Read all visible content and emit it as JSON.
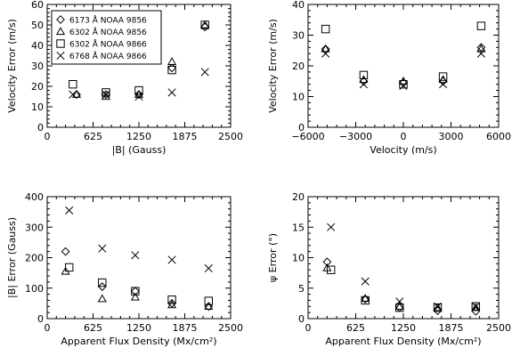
{
  "chart_data": [
    {
      "type": "scatter",
      "xlabel": "|B| (Gauss)",
      "ylabel": "Velocity Error (m/s)",
      "xlim": [
        0,
        2500
      ],
      "ylim": [
        0,
        60
      ],
      "xticks": [
        0,
        625,
        1250,
        1875,
        2500
      ],
      "yticks": [
        0,
        10,
        20,
        30,
        40,
        50,
        60
      ],
      "legend": {
        "placement": "top-left",
        "entries": [
          "6173 Å NOAA 9856",
          "6302 Å NOAA 9856",
          "6302 Å NOAA 9866",
          "6768 Å NOAA 9866"
        ]
      },
      "series": [
        {
          "name": "6173 Å NOAA 9856",
          "marker": "diamond",
          "x": [
            400,
            800,
            1250,
            1700,
            2150
          ],
          "y": [
            16,
            16,
            16,
            29,
            49
          ]
        },
        {
          "name": "6302 Å NOAA 9856",
          "marker": "triangle",
          "x": [
            400,
            800,
            1250,
            1700,
            2150
          ],
          "y": [
            16,
            15,
            16,
            32,
            50
          ]
        },
        {
          "name": "6302 Å NOAA 9866",
          "marker": "square",
          "x": [
            350,
            800,
            1250,
            1700,
            2150
          ],
          "y": [
            21,
            17,
            18,
            28,
            50
          ]
        },
        {
          "name": "6768 Å NOAA 9866",
          "marker": "x",
          "x": [
            350,
            800,
            1250,
            1700,
            2150
          ],
          "y": [
            16,
            16,
            15,
            17,
            27
          ]
        }
      ]
    },
    {
      "type": "scatter",
      "xlabel": "Velocity (m/s)",
      "ylabel": "Velocity Error (m/s)",
      "xlim": [
        -6000,
        6000
      ],
      "ylim": [
        0,
        40
      ],
      "xticks": [
        -6000,
        -3000,
        0,
        3000,
        6000
      ],
      "yticks": [
        0,
        10,
        20,
        30,
        40
      ],
      "series": [
        {
          "name": "6173 Å NOAA 9856",
          "marker": "diamond",
          "x": [
            -4900,
            -2500,
            0,
            2500,
            4900
          ],
          "y": [
            25.5,
            15,
            14.5,
            15,
            26
          ]
        },
        {
          "name": "6302 Å NOAA 9856",
          "marker": "triangle",
          "x": [
            -4900,
            -2500,
            0,
            2500,
            4900
          ],
          "y": [
            25.5,
            15.5,
            15,
            15.5,
            25.5
          ]
        },
        {
          "name": "6302 Å NOAA 9866",
          "marker": "square",
          "x": [
            -4900,
            -2500,
            0,
            2500,
            4900
          ],
          "y": [
            32,
            17,
            14,
            16.5,
            33
          ]
        },
        {
          "name": "6768 Å NOAA 9866",
          "marker": "x",
          "x": [
            -4900,
            -2500,
            0,
            2500,
            4900
          ],
          "y": [
            24,
            14,
            13.5,
            14,
            24
          ]
        }
      ]
    },
    {
      "type": "scatter",
      "xlabel": "Apparent Flux Density (Mx/cm²)",
      "ylabel": "|B| Error (Gauss)",
      "xlim": [
        0,
        2500
      ],
      "ylim": [
        0,
        400
      ],
      "xticks": [
        0,
        625,
        1250,
        1875,
        2500
      ],
      "yticks": [
        0,
        100,
        200,
        300,
        400
      ],
      "series": [
        {
          "name": "6173 Å NOAA 9856",
          "marker": "diamond",
          "x": [
            250,
            750,
            1200,
            1700,
            2200
          ],
          "y": [
            220,
            105,
            90,
            50,
            40
          ]
        },
        {
          "name": "6302 Å NOAA 9856",
          "marker": "triangle",
          "x": [
            250,
            750,
            1200,
            1700,
            2200
          ],
          "y": [
            155,
            65,
            70,
            45,
            40
          ]
        },
        {
          "name": "6302 Å NOAA 9866",
          "marker": "square",
          "x": [
            300,
            750,
            1200,
            1700,
            2200
          ],
          "y": [
            168,
            118,
            90,
            62,
            58
          ]
        },
        {
          "name": "6768 Å NOAA 9866",
          "marker": "x",
          "x": [
            300,
            750,
            1200,
            1700,
            2200
          ],
          "y": [
            355,
            230,
            208,
            193,
            165
          ]
        }
      ]
    },
    {
      "type": "scatter",
      "xlabel": "Apparent Flux Density (Mx/cm²)",
      "ylabel": "ψ Error (°)",
      "xlim": [
        0,
        2500
      ],
      "ylim": [
        0,
        20
      ],
      "xticks": [
        0,
        625,
        1250,
        1875,
        2500
      ],
      "yticks": [
        0,
        5,
        10,
        15,
        20
      ],
      "series": [
        {
          "name": "6173 Å NOAA 9856",
          "marker": "diamond",
          "x": [
            250,
            750,
            1200,
            1700,
            2200
          ],
          "y": [
            9.3,
            3.2,
            1.8,
            1.3,
            1.2
          ]
        },
        {
          "name": "6302 Å NOAA 9856",
          "marker": "triangle",
          "x": [
            250,
            750,
            1200,
            1700,
            2200
          ],
          "y": [
            8.3,
            3.3,
            2.0,
            1.8,
            1.8
          ]
        },
        {
          "name": "6302 Å NOAA 9866",
          "marker": "square",
          "x": [
            300,
            750,
            1200,
            1700,
            2200
          ],
          "y": [
            8.0,
            3.0,
            1.8,
            1.8,
            2.0
          ]
        },
        {
          "name": "6768 Å NOAA 9866",
          "marker": "x",
          "x": [
            300,
            750,
            1200,
            1700,
            2200
          ],
          "y": [
            15.0,
            6.1,
            2.8,
            2.0,
            2.0
          ]
        }
      ]
    }
  ]
}
